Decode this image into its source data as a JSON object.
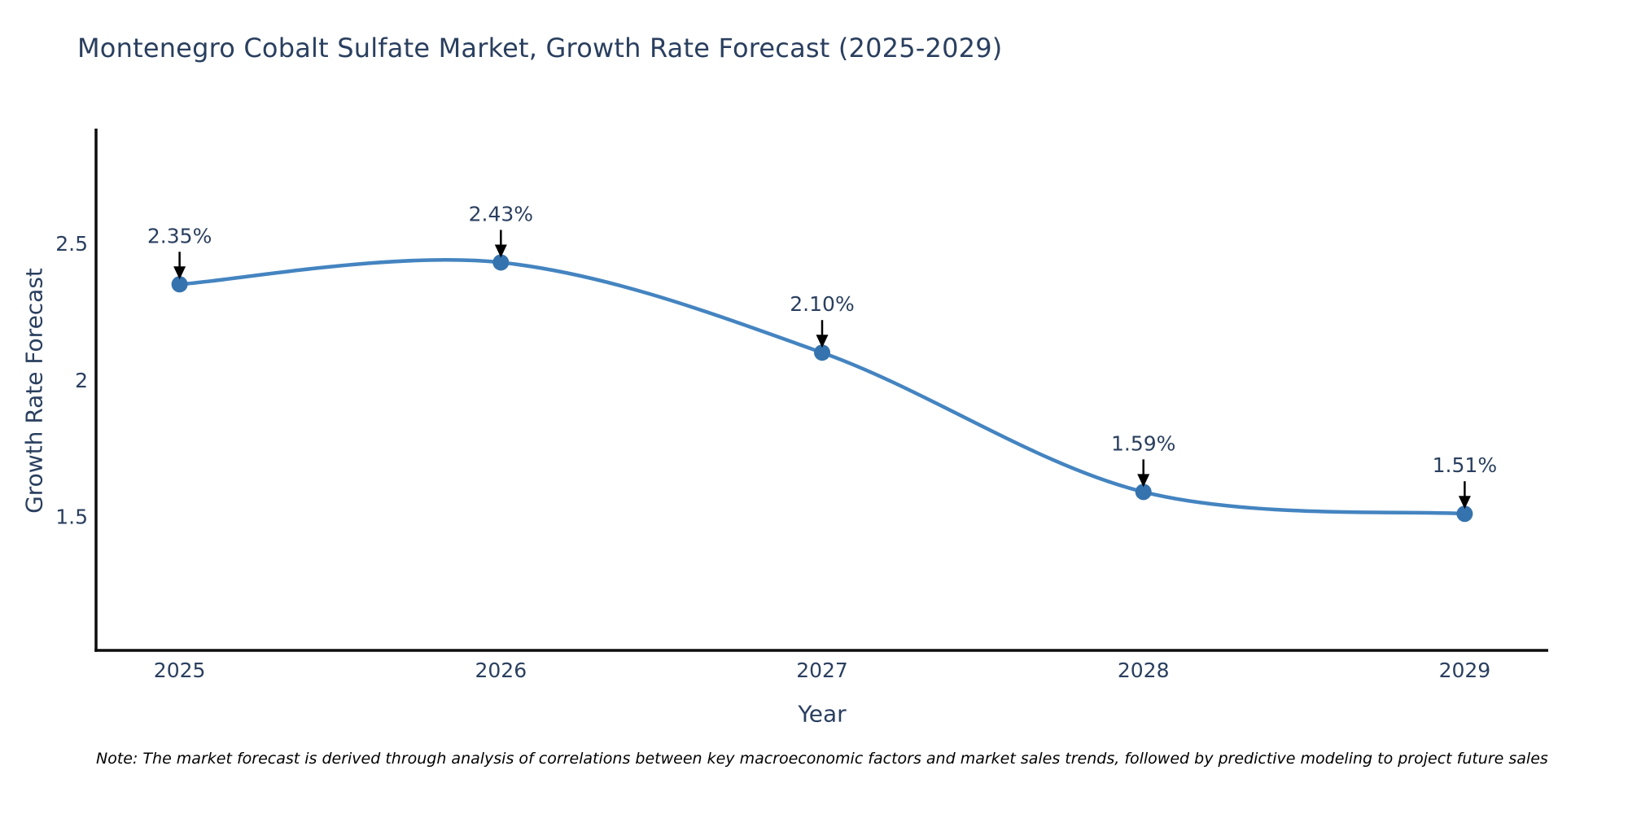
{
  "title": "Montenegro Cobalt Sulfate Market, Growth Rate Forecast (2025-2029)",
  "note": "Note: The market forecast is derived through analysis of correlations between key macroeconomic factors and market sales trends, followed by predictive modeling to project future sales",
  "chart_data": {
    "type": "line",
    "line_shape": "spline",
    "title": "Montenegro Cobalt Sulfate Market, Growth Rate Forecast (2025-2029)",
    "xlabel": "Year",
    "ylabel": "Growth Rate Forecast",
    "x": [
      2025,
      2026,
      2027,
      2028,
      2029
    ],
    "values": [
      2.35,
      2.43,
      2.1,
      1.59,
      1.51
    ],
    "point_labels": [
      "2.35%",
      "2.43%",
      "2.10%",
      "1.59%",
      "1.51%"
    ],
    "x_tick_labels": [
      "2025",
      "2026",
      "2027",
      "2028",
      "2029"
    ],
    "y_ticks": [
      2.5,
      2.0,
      1.5
    ],
    "y_tick_labels": [
      "2.5",
      "2",
      "1.5"
    ],
    "xlim": [
      2024.74,
      2029.26
    ],
    "ylim": [
      1.01,
      2.92
    ],
    "grid": false,
    "legend": "none",
    "colors": {
      "line": "#4484c0",
      "marker": "#3573ae",
      "axis": "#0d0d0d",
      "text": "#2a3f5f",
      "annotation_arrow": "#000000",
      "note_text": "#000000",
      "background": "#ffffff"
    }
  }
}
